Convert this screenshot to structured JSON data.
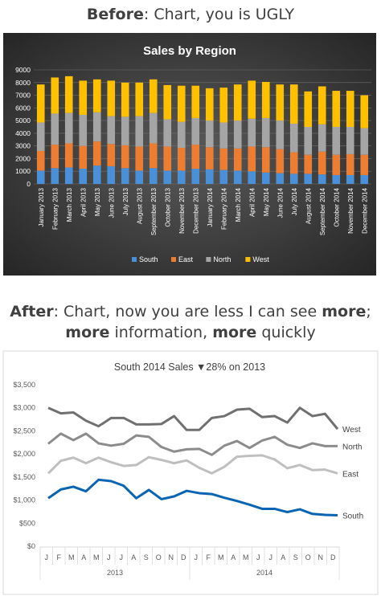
{
  "headings": {
    "before_bold": "Before",
    "before_rest": ": Chart, you is UGLY",
    "after_line1_bold": "After",
    "after_line1_mid": ": Chart, now you are less I can see ",
    "after_line1_bold2": "more",
    "after_line1_end": ";",
    "after_line2_bold": "more",
    "after_line2_mid": " information, ",
    "after_line2_bold2": "more",
    "after_line2_end": " quickly"
  },
  "colors": {
    "south": "#4a90d9",
    "east": "#ed7d31",
    "north": "#a5a5a5",
    "west": "#ffc000",
    "after_south": "#0a64b4",
    "after_north": "#8c8c8c",
    "after_east": "#bfbfbf",
    "after_west": "#707070"
  },
  "chart_data": [
    {
      "type": "bar",
      "stacked": true,
      "title": "Sales by Region",
      "ylim": [
        0,
        9000
      ],
      "yticks": [
        0,
        1000,
        2000,
        3000,
        4000,
        5000,
        6000,
        7000,
        8000,
        9000
      ],
      "categories": [
        "January 2013",
        "February 2013",
        "March 2013",
        "April 2013",
        "May 2013",
        "June 2013",
        "July 2013",
        "August 2013",
        "September 2013",
        "October 2013",
        "November 2013",
        "December 2013",
        "January 2014",
        "February 2014",
        "March 2014",
        "April 2014",
        "May 2014",
        "June 2014",
        "July 2014",
        "August 2014",
        "September 2014",
        "October 2014",
        "November 2014",
        "December 2014"
      ],
      "legend_position": "bottom",
      "grid": true,
      "series": [
        {
          "name": "South",
          "values": [
            1050,
            1250,
            1300,
            1200,
            1450,
            1400,
            1250,
            1050,
            1250,
            1050,
            1050,
            1200,
            1150,
            1100,
            1050,
            1000,
            900,
            850,
            800,
            800,
            750,
            700,
            700,
            700
          ]
        },
        {
          "name": "East",
          "values": [
            1550,
            1850,
            1900,
            1800,
            1900,
            1750,
            1800,
            1900,
            1950,
            1900,
            1800,
            1900,
            1750,
            1700,
            1750,
            1950,
            2000,
            1900,
            1700,
            1500,
            1800,
            1600,
            1650,
            1600
          ]
        },
        {
          "name": "North",
          "values": [
            2250,
            2450,
            2400,
            2450,
            2300,
            2200,
            2250,
            2400,
            2400,
            2150,
            2050,
            2100,
            2100,
            2050,
            2200,
            2200,
            2300,
            2250,
            2250,
            2200,
            2150,
            2200,
            2150,
            2100
          ]
        },
        {
          "name": "West",
          "values": [
            3000,
            2850,
            2900,
            2700,
            2600,
            2800,
            2700,
            2650,
            2650,
            2700,
            2850,
            2550,
            2550,
            2750,
            2850,
            3000,
            2850,
            2850,
            3100,
            2800,
            3000,
            2850,
            2850,
            2600
          ]
        }
      ]
    },
    {
      "type": "line",
      "title": "South 2014 Sales",
      "title_indicator": "▼",
      "title_change": "28% on 2013",
      "ylim": [
        0,
        3500
      ],
      "yticks": [
        "$0",
        "$500",
        "$1,000",
        "$1,500",
        "$2,000",
        "$2,500",
        "$3,000",
        "$3,500"
      ],
      "ytick_values": [
        0,
        500,
        1000,
        1500,
        2000,
        2500,
        3000,
        3500
      ],
      "month_labels": [
        "J",
        "F",
        "M",
        "A",
        "M",
        "J",
        "J",
        "A",
        "S",
        "O",
        "N",
        "D",
        "J",
        "F",
        "M",
        "A",
        "M",
        "J",
        "J",
        "A",
        "S",
        "O",
        "N",
        "D"
      ],
      "year_labels": [
        "2013",
        "2014"
      ],
      "grid": false,
      "series": [
        {
          "name": "West",
          "values": [
            3000,
            2880,
            2900,
            2720,
            2600,
            2780,
            2780,
            2640,
            2640,
            2650,
            2820,
            2520,
            2520,
            2780,
            2820,
            2960,
            2980,
            2800,
            2820,
            2680,
            3000,
            2820,
            2870,
            2540
          ]
        },
        {
          "name": "North",
          "values": [
            2220,
            2440,
            2300,
            2440,
            2230,
            2180,
            2220,
            2400,
            2370,
            2150,
            2050,
            2100,
            2110,
            1980,
            2180,
            2280,
            2130,
            2290,
            2370,
            2200,
            2130,
            2230,
            2170,
            2170
          ]
        },
        {
          "name": "East",
          "values": [
            1580,
            1850,
            1920,
            1800,
            1920,
            1820,
            1740,
            1760,
            1930,
            1870,
            1800,
            1860,
            1700,
            1580,
            1720,
            1940,
            1960,
            1970,
            1880,
            1690,
            1760,
            1650,
            1660,
            1580
          ]
        },
        {
          "name": "South",
          "values": [
            1040,
            1230,
            1290,
            1190,
            1440,
            1410,
            1310,
            1040,
            1220,
            1020,
            1080,
            1200,
            1150,
            1130,
            1050,
            980,
            900,
            810,
            810,
            740,
            800,
            700,
            680,
            670
          ]
        }
      ]
    }
  ]
}
